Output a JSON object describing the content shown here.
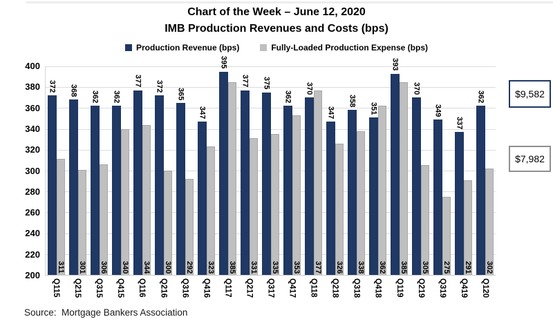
{
  "title": {
    "line1": "Chart of the Week – June 12, 2020",
    "line2": "IMB Production Revenues and Costs (bps)"
  },
  "legend": [
    {
      "label": "Production Revenue (bps)",
      "color": "#1f3864"
    },
    {
      "label": "Fully-Loaded Production Expense (bps)",
      "color": "#bfbfbf"
    }
  ],
  "chart_data": {
    "type": "bar",
    "title": "IMB Production Revenues and Costs (bps)",
    "categories": [
      "Q115",
      "Q215",
      "Q315",
      "Q415",
      "Q116",
      "Q216",
      "Q316",
      "Q416",
      "Q117",
      "Q217",
      "Q317",
      "Q417",
      "Q118",
      "Q218",
      "Q318",
      "Q418",
      "Q119",
      "Q219",
      "Q319",
      "Q419",
      "Q120"
    ],
    "series": [
      {
        "name": "Production Revenue (bps)",
        "color": "#1f3864",
        "values": [
          372,
          368,
          362,
          362,
          377,
          372,
          365,
          347,
          395,
          377,
          375,
          362,
          370,
          347,
          358,
          351,
          393,
          370,
          349,
          337,
          362
        ]
      },
      {
        "name": "Fully-Loaded Production Expense (bps)",
        "color": "#bfbfbf",
        "values": [
          311,
          301,
          306,
          340,
          344,
          300,
          292,
          323,
          385,
          331,
          335,
          353,
          377,
          326,
          338,
          362,
          385,
          305,
          275,
          291,
          302
        ]
      }
    ],
    "xlabel": "",
    "ylabel": "",
    "ylim": [
      200,
      400
    ],
    "ytick_step": 20,
    "grid": true,
    "legend_position": "top",
    "value_labels_rotated": true
  },
  "annotations": [
    {
      "text": "$9,582",
      "border_color": "#1f3864"
    },
    {
      "text": "$7,982",
      "border_color": "#8f8f8f"
    }
  ],
  "source": "Source:  Mortgage Bankers Association"
}
